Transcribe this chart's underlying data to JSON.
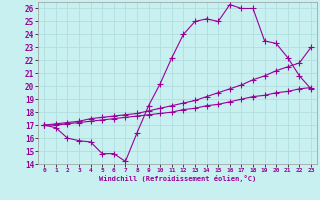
{
  "xlabel": "Windchill (Refroidissement éolien,°C)",
  "xlim": [
    -0.5,
    23.5
  ],
  "ylim": [
    14,
    26.5
  ],
  "yticks": [
    14,
    15,
    16,
    17,
    18,
    19,
    20,
    21,
    22,
    23,
    24,
    25,
    26
  ],
  "xticks": [
    0,
    1,
    2,
    3,
    4,
    5,
    6,
    7,
    8,
    9,
    10,
    11,
    12,
    13,
    14,
    15,
    16,
    17,
    18,
    19,
    20,
    21,
    22,
    23
  ],
  "bg_color": "#c8f0f0",
  "line_color": "#990099",
  "grid_color": "#b0dede",
  "line1_x": [
    0,
    1,
    2,
    3,
    4,
    5,
    6,
    7,
    8,
    9,
    10,
    11,
    12,
    13,
    14,
    15,
    16,
    17,
    18,
    19,
    20,
    21,
    22,
    23
  ],
  "line1_y": [
    17.0,
    16.8,
    16.0,
    15.8,
    15.7,
    14.8,
    14.8,
    14.2,
    16.4,
    18.5,
    20.2,
    22.2,
    24.0,
    25.0,
    25.2,
    25.0,
    26.3,
    26.0,
    26.0,
    23.5,
    23.3,
    22.2,
    20.8,
    19.8
  ],
  "line2_x": [
    0,
    1,
    2,
    3,
    4,
    5,
    6,
    7,
    8,
    9,
    10,
    11,
    12,
    13,
    14,
    15,
    16,
    17,
    18,
    19,
    20,
    21,
    22,
    23
  ],
  "line2_y": [
    17.0,
    17.1,
    17.2,
    17.3,
    17.5,
    17.6,
    17.7,
    17.8,
    17.9,
    18.1,
    18.3,
    18.5,
    18.7,
    18.9,
    19.2,
    19.5,
    19.8,
    20.1,
    20.5,
    20.8,
    21.2,
    21.5,
    21.8,
    23.0
  ],
  "line3_x": [
    0,
    1,
    2,
    3,
    4,
    5,
    6,
    7,
    8,
    9,
    10,
    11,
    12,
    13,
    14,
    15,
    16,
    17,
    18,
    19,
    20,
    21,
    22,
    23
  ],
  "line3_y": [
    17.0,
    17.0,
    17.1,
    17.2,
    17.3,
    17.4,
    17.5,
    17.6,
    17.7,
    17.8,
    17.9,
    18.0,
    18.2,
    18.3,
    18.5,
    18.6,
    18.8,
    19.0,
    19.2,
    19.3,
    19.5,
    19.6,
    19.8,
    19.9
  ]
}
